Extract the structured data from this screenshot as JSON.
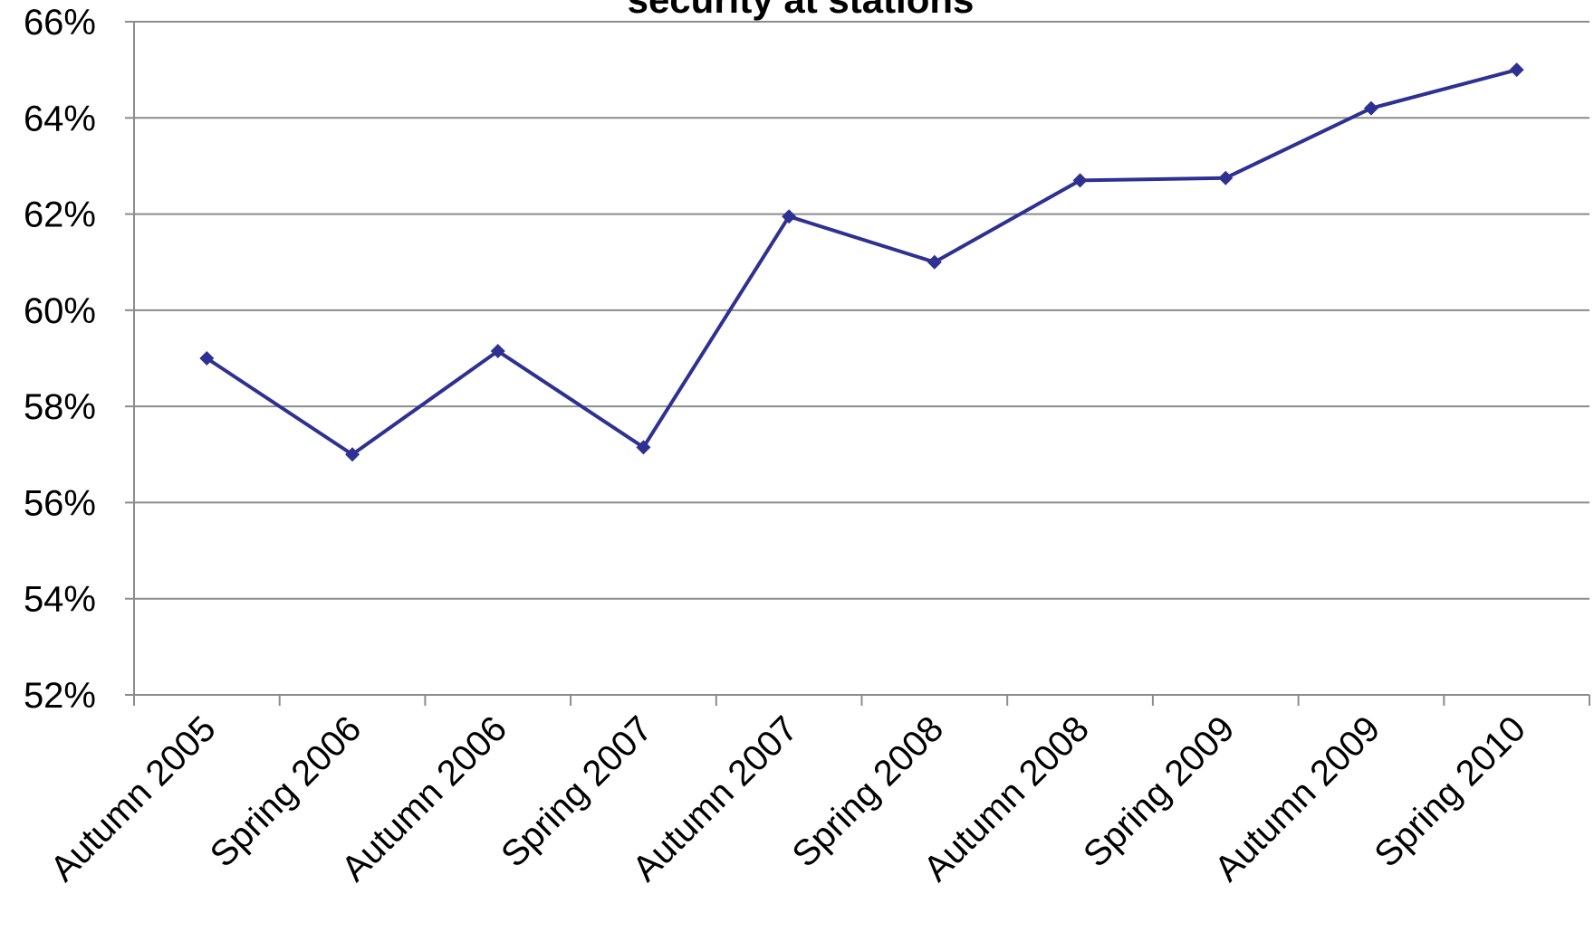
{
  "chart_data": {
    "type": "line",
    "title": "security at stations",
    "xlabel": "",
    "ylabel": "",
    "categories": [
      "Autumn 2005",
      "Spring 2006",
      "Autumn 2006",
      "Spring 2007",
      "Autumn 2007",
      "Spring 2008",
      "Autumn 2008",
      "Spring 2009",
      "Autumn 2009",
      "Spring 2010"
    ],
    "series": [
      {
        "values": [
          59.0,
          57.0,
          59.15,
          57.15,
          61.95,
          61.0,
          62.7,
          62.75,
          64.2,
          65.0
        ],
        "color": "#2e3192",
        "marker": "diamond"
      }
    ],
    "ylim": [
      52,
      66
    ],
    "yticks": [
      52,
      54,
      56,
      58,
      60,
      62,
      64,
      66
    ],
    "ytick_labels": [
      "52%",
      "54%",
      "56%",
      "58%",
      "60%",
      "62%",
      "64%",
      "66%"
    ],
    "grid": true,
    "legend": "none"
  }
}
